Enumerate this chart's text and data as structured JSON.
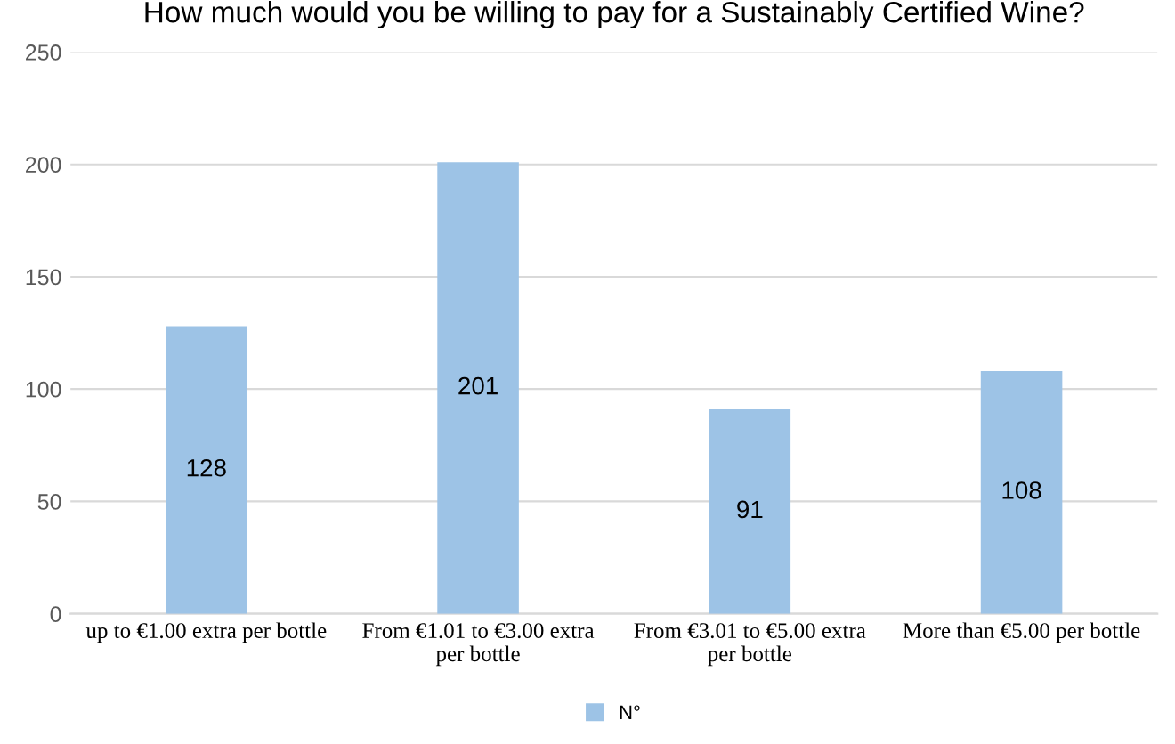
{
  "chart_data": {
    "type": "bar",
    "title": "How much would you be willing to pay for a Sustainably Certified Wine?",
    "categories": [
      "up to €1.00 extra per bottle",
      "From €1.01 to €3.00 extra\nper bottle",
      "From €3.01 to €5.00 extra\nper bottle",
      "More than €5.00 per bottle"
    ],
    "series": [
      {
        "name": "N°",
        "color": "#9dc3e6",
        "values": [
          128,
          201,
          91,
          108
        ]
      }
    ],
    "ylim": [
      0,
      250
    ],
    "yticks": [
      0,
      50,
      100,
      150,
      200,
      250
    ],
    "grid": "y",
    "legend": "bottom",
    "data_labels": true
  }
}
